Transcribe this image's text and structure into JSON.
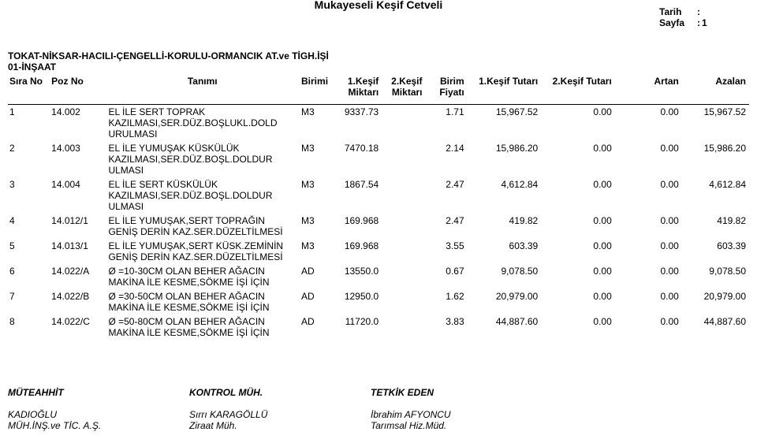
{
  "meta": {
    "tarih_label": "Tarih",
    "tarih_value": "",
    "sayfa_label": "Sayfa",
    "sayfa_value": "1",
    "colon": ":"
  },
  "subject_line1": "TOKAT-NİKSAR-HACILI-ÇENGELLİ-KORULU-ORMANCIK AT.ve TİGH.İŞİ",
  "subject_line2": "01-İNŞAAT",
  "title": "Mukayeseli Keşif Cetveli",
  "headers": {
    "sira": "Sıra No",
    "poz": "Poz No",
    "tanim": "Tanımı",
    "birim": "Birimi",
    "k1m_a": "1.Keşif",
    "k1m_b": "Miktarı",
    "k2m_a": "2.Keşif",
    "k2m_b": "Miktarı",
    "bf_a": "Birim",
    "bf_b": "Fiyatı",
    "k1t": "1.Keşif Tutarı",
    "k2t": "2.Keşif Tutarı",
    "artan": "Artan",
    "azalan": "Azalan"
  },
  "rows": [
    {
      "sira": "1",
      "poz": "14.002",
      "tanim": "EL İLE SERT TOPRAK KAZILMASI,SER.DÜZ.BOŞLUKL.DOLD URULMASI",
      "birim": "M3",
      "k1m": "9337.73",
      "k2m": "",
      "bf": "1.71",
      "k1t": "15,967.52",
      "k2t": "0.00",
      "artan": "0.00",
      "azalan": "15,967.52"
    },
    {
      "sira": "2",
      "poz": "14.003",
      "tanim": "EL İLE YUMUŞAK KÜSKÜLÜK KAZILMASI,SER.DÜZ.BOŞL.DOLDUR ULMASI",
      "birim": "M3",
      "k1m": "7470.18",
      "k2m": "",
      "bf": "2.14",
      "k1t": "15,986.20",
      "k2t": "0.00",
      "artan": "0.00",
      "azalan": "15,986.20"
    },
    {
      "sira": "3",
      "poz": "14.004",
      "tanim": "EL İLE SERT KÜSKÜLÜK KAZILMASI,SER.DÜZ.BOŞL.DOLDUR ULMASI",
      "birim": "M3",
      "k1m": "1867.54",
      "k2m": "",
      "bf": "2.47",
      "k1t": "4,612.84",
      "k2t": "0.00",
      "artan": "0.00",
      "azalan": "4,612.84"
    },
    {
      "sira": "4",
      "poz": "14.012/1",
      "tanim": "EL İLE YUMUŞAK,SERT TOPRAĞIN GENİŞ DERİN KAZ.SER.DÜZELTİLMESİ",
      "birim": "M3",
      "k1m": "169.968",
      "k2m": "",
      "bf": "2.47",
      "k1t": "419.82",
      "k2t": "0.00",
      "artan": "0.00",
      "azalan": "419.82"
    },
    {
      "sira": "5",
      "poz": "14.013/1",
      "tanim": "EL İLE YUMUŞAK,SERT KÜSK.ZEMİNİN GENİŞ DERİN KAZ.SER.DÜZELTİLMESİ",
      "birim": "M3",
      "k1m": "169.968",
      "k2m": "",
      "bf": "3.55",
      "k1t": "603.39",
      "k2t": "0.00",
      "artan": "0.00",
      "azalan": "603.39"
    },
    {
      "sira": "6",
      "poz": "14.022/A",
      "tanim": "Ø =10-30CM OLAN BEHER AĞACIN MAKİNA İLE KESME,SÖKME İŞİ İÇİN",
      "birim": "AD",
      "k1m": "13550.0",
      "k2m": "",
      "bf": "0.67",
      "k1t": "9,078.50",
      "k2t": "0.00",
      "artan": "0.00",
      "azalan": "9,078.50"
    },
    {
      "sira": "7",
      "poz": "14.022/B",
      "tanim": "Ø =30-50CM OLAN BEHER AĞACIN MAKİNA İLE KESME,SÖKME İŞİ İÇİN",
      "birim": "AD",
      "k1m": "12950.0",
      "k2m": "",
      "bf": "1.62",
      "k1t": "20,979.00",
      "k2t": "0.00",
      "artan": "0.00",
      "azalan": "20,979.00"
    },
    {
      "sira": "8",
      "poz": "14.022/C",
      "tanim": "Ø =50-80CM OLAN BEHER AĞACIN MAKİNA İLE KESME,SÖKME İŞİ İÇİN",
      "birim": "AD",
      "k1m": "11720.0",
      "k2m": "",
      "bf": "3.83",
      "k1t": "44,887.60",
      "k2t": "0.00",
      "artan": "0.00",
      "azalan": "44,887.60"
    }
  ],
  "sigs": {
    "c1_h": "MÜTEAHHİT",
    "c1_n1": "KADIOĞLU",
    "c1_n2": "MÜH.İNŞ.ve TİC. A.Ş.",
    "c2_h": "KONTROL MÜH.",
    "c2_n1": "Sırrı KARAGÖLLÜ",
    "c2_n2": "Ziraat Müh.",
    "c3_h": "TETKİK EDEN",
    "c3_n1": "İbrahim AFYONCU",
    "c3_n2": "Tarımsal Hiz.Müd."
  }
}
